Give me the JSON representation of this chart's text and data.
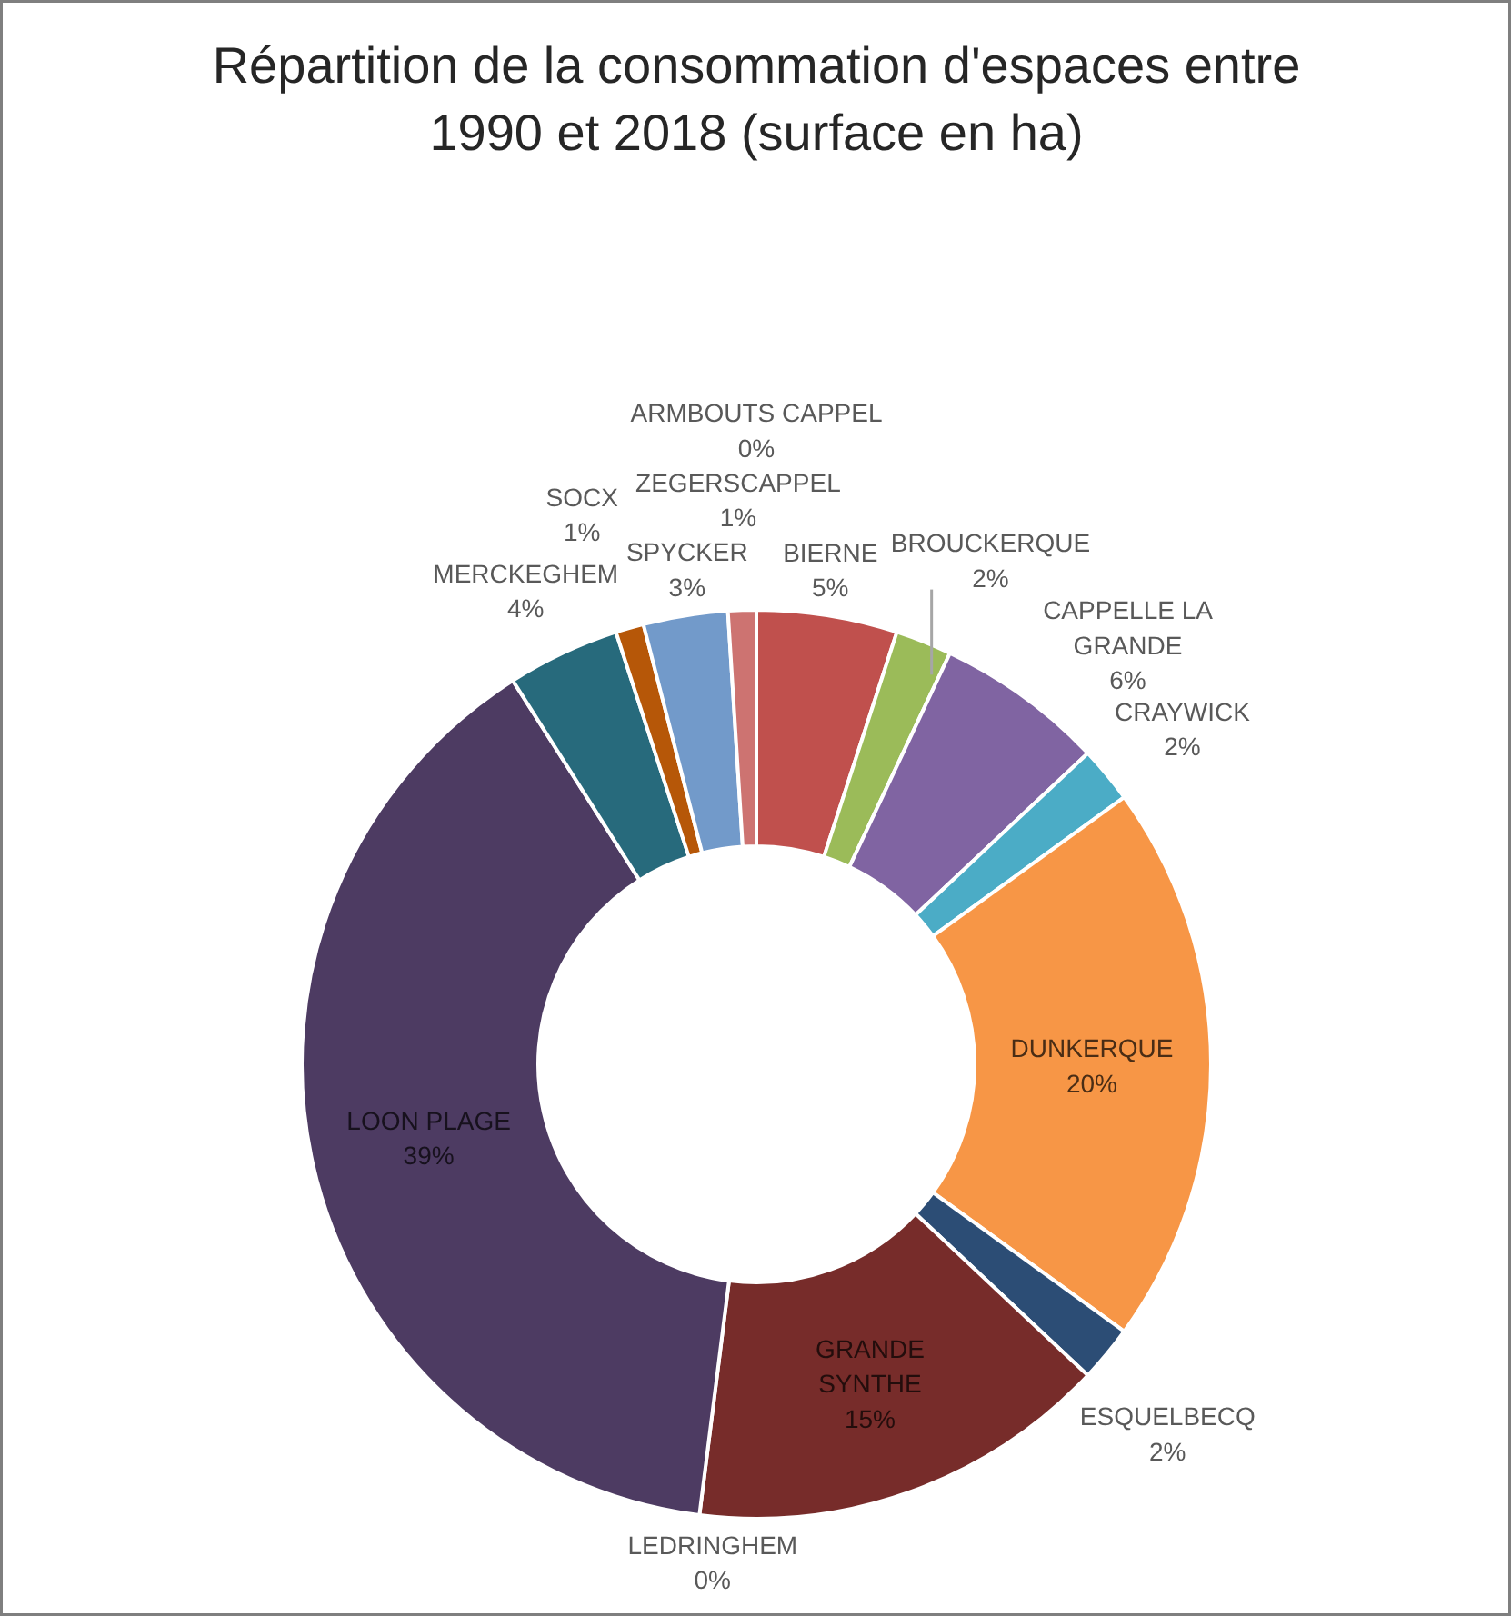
{
  "chart_data": {
    "type": "donut",
    "title": "Répartition de la consommation d'espaces entre 1990 et 2018 (surface en ha)",
    "categories": [
      "ARMBOUTS CAPPEL",
      "BIERNE",
      "BROUCKERQUE",
      "CAPPELLE LA GRANDE",
      "CRAYWICK",
      "DUNKERQUE",
      "ESQUELBECQ",
      "GRANDE SYNTHE",
      "LEDRINGHEM",
      "LOON PLAGE",
      "MERCKEGHEM",
      "SOCX",
      "SPYCKER",
      "ZEGERSCAPPEL"
    ],
    "values": [
      0,
      5,
      2,
      6,
      2,
      20,
      2,
      15,
      0,
      39,
      4,
      1,
      3,
      1
    ],
    "colors": [
      "#4f81bd",
      "#c0504d",
      "#9bbb59",
      "#8064a2",
      "#4bacc6",
      "#f79646",
      "#2c4d75",
      "#772c2a",
      "#5f7530",
      "#4d3b62",
      "#276a7c",
      "#b65708",
      "#729aca",
      "#cd7371"
    ],
    "value_labels": [
      "0%",
      "5%",
      "2%",
      "6%",
      "2%",
      "20%",
      "2%",
      "15%",
      "0%",
      "39%",
      "4%",
      "1%",
      "3%",
      "1%"
    ]
  }
}
